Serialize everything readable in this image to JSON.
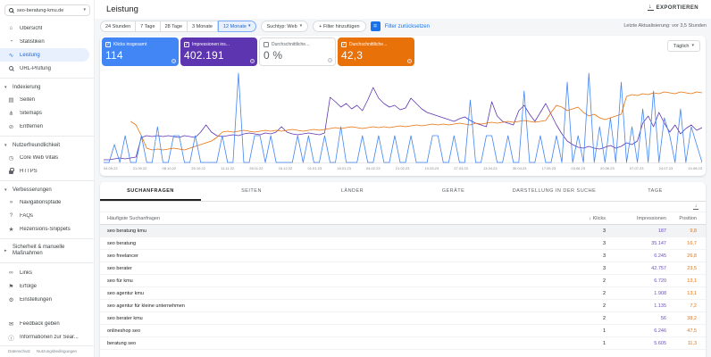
{
  "ui": {
    "caret": "▾",
    "download_glyph": "↓",
    "check_glyph": "✓",
    "help_glyph": "?",
    "badge_glyph": "="
  },
  "header": {
    "title": "Leistung",
    "export_label": "EXPORTIEREN",
    "last_update": "Letzte Aktualisierung: vor 3,5 Stunden"
  },
  "property": {
    "name": "seo-beratung-kmu.de"
  },
  "sidebar": {
    "items": [
      {
        "type": "item",
        "label": "Übersicht",
        "icon": "home-icon",
        "glyph": "⌂"
      },
      {
        "type": "item",
        "label": "Statistiken",
        "icon": "insights-icon",
        "glyph": "◔"
      },
      {
        "type": "item",
        "label": "Leistung",
        "icon": "performance-icon",
        "glyph": "∿",
        "selected": true
      },
      {
        "type": "item",
        "label": "URL-Prüfung",
        "icon": "url-inspect-icon",
        "glyph": "search"
      },
      {
        "type": "divider"
      },
      {
        "type": "section",
        "label": "Indexierung",
        "caret": "▾"
      },
      {
        "type": "item",
        "label": "Seiten",
        "icon": "pages-icon",
        "glyph": "▤"
      },
      {
        "type": "item",
        "label": "Sitemaps",
        "icon": "sitemaps-icon",
        "glyph": "⋔"
      },
      {
        "type": "item",
        "label": "Entfernen",
        "icon": "removals-icon",
        "glyph": "⊘"
      },
      {
        "type": "divider"
      },
      {
        "type": "section",
        "label": "Nutzerfreundlichkeit",
        "caret": "▾"
      },
      {
        "type": "item",
        "label": "Core Web Vitals",
        "icon": "core-web-vitals-icon",
        "glyph": "◷"
      },
      {
        "type": "item",
        "label": "HTTPS",
        "icon": "https-lock-icon",
        "glyph": "lock"
      },
      {
        "type": "divider"
      },
      {
        "type": "section",
        "label": "Verbesserungen",
        "caret": "▾"
      },
      {
        "type": "item",
        "label": "Navigationspfade",
        "icon": "breadcrumbs-icon",
        "glyph": "»"
      },
      {
        "type": "item",
        "label": "FAQs",
        "icon": "faq-icon",
        "glyph": "?"
      },
      {
        "type": "item",
        "label": "Rezensions-Snippets",
        "icon": "review-snippets-icon",
        "glyph": "★"
      },
      {
        "type": "divider"
      },
      {
        "type": "section",
        "label": "Sicherheit & manuelle Maßnahmen",
        "caret": "▸",
        "two_line": true
      },
      {
        "type": "divider"
      },
      {
        "type": "item",
        "label": "Links",
        "icon": "links-icon",
        "glyph": "∞"
      },
      {
        "type": "item",
        "label": "Erfolge",
        "icon": "achievements-icon",
        "glyph": "⚑"
      },
      {
        "type": "item",
        "label": "Einstellungen",
        "icon": "settings-gear-icon",
        "glyph": "⚙"
      }
    ],
    "footer_items": [
      {
        "label": "Feedback geben",
        "icon": "feedback-icon",
        "glyph": "✉"
      },
      {
        "label": "Informationen zur Sear...",
        "icon": "info-icon",
        "glyph": "ⓘ"
      }
    ],
    "legal": [
      "Datenschutz",
      "Nutzungsbedingungen"
    ]
  },
  "filters": {
    "date_ranges": [
      "24 Stunden",
      "7 Tage",
      "28 Tage",
      "3 Monate"
    ],
    "date_selected": "12 Monate",
    "search_type": "Suchtyp: Web",
    "add_filter": "+ Filter hinzufügen",
    "reset_filters": "Filter zurücksetzen"
  },
  "metrics": {
    "granularity": "Täglich",
    "cards": [
      {
        "name": "clicks",
        "label": "Klicks insgesamt",
        "value": "114",
        "checked": true,
        "color": "#4285f4"
      },
      {
        "name": "impressions",
        "label": "Impressionen ins...",
        "value": "402.191",
        "checked": true,
        "color": "#5e35b1"
      },
      {
        "name": "ctr",
        "label": "Durchschnittliche...",
        "value": "0 %",
        "checked": false,
        "color": "#ffffff"
      },
      {
        "name": "position",
        "label": "Durchschnittliche...",
        "value": "42,3",
        "checked": true,
        "color": "#e8710a"
      }
    ]
  },
  "chart_data": {
    "type": "line",
    "x_labels": [
      "04.09.22",
      "21.09.22",
      "08.10.22",
      "25.10.22",
      "11.11.22",
      "28.11.22",
      "15.12.22",
      "01.01.23",
      "18.01.23",
      "04.02.23",
      "21.02.23",
      "10.03.23",
      "27.03.23",
      "13.04.23",
      "30.04.23",
      "17.05.23",
      "03.06.23",
      "20.06.23",
      "07.07.23",
      "24.07.23",
      "10.08.23"
    ],
    "value_scale": [
      0,
      10
    ],
    "series": [
      {
        "name": "Impressionen",
        "color": "#5e35b1",
        "values": [
          0.3,
          0.3,
          0.4,
          0.5,
          0.4,
          0.5,
          0.6,
          2.8,
          3.0,
          2.9,
          3.0,
          2.9,
          3.0,
          2.9,
          2.8,
          3.0,
          2.9,
          2.8,
          3.4,
          4.2,
          3.4,
          3.0,
          2.9,
          3.0,
          3.1,
          3.0,
          3.2,
          3.3,
          3.2,
          3.1,
          3.3,
          3.2,
          3.4,
          4.0,
          3.4,
          3.2,
          3.1,
          3.2,
          3.3,
          3.2,
          3.1,
          3.3,
          7.3,
          6.8,
          6.2,
          6.6,
          6.0,
          6.4,
          5.8,
          7.0,
          8.4,
          7.2,
          6.6,
          6.2,
          6.4,
          5.9,
          6.1,
          7.2,
          6.6,
          6.0,
          5.6,
          5.4,
          5.2,
          5.0,
          4.8,
          4.6,
          4.9,
          5.1,
          4.7,
          4.4,
          4.2,
          4.0,
          6.8,
          5.2,
          4.6,
          4.4,
          4.2,
          5.8,
          6.4,
          5.4,
          4.6,
          5.6,
          6.6,
          5.4,
          4.2,
          3.2,
          2.4,
          2.0,
          1.7,
          1.6,
          1.8,
          1.6,
          1.5,
          1.7,
          1.9,
          1.6,
          1.8,
          2.2,
          2.0,
          2.4,
          4.4,
          5.2,
          4.0,
          5.6,
          4.4,
          3.4,
          4.2,
          3.2,
          3.8,
          4.2,
          3.6,
          3.9
        ]
      },
      {
        "name": "Position",
        "color": "#e8710a",
        "values": [
          null,
          null,
          null,
          null,
          null,
          4.6,
          4.2,
          3.0,
          1.6,
          1.4,
          1.5,
          1.4,
          1.5,
          1.6,
          1.5,
          1.4,
          1.6,
          1.8,
          2.0,
          2.2,
          2.4,
          2.8,
          3.4,
          3.5,
          3.4,
          3.5,
          3.6,
          3.5,
          3.4,
          3.5,
          3.6,
          3.5,
          3.6,
          3.5,
          3.6,
          3.7,
          3.6,
          3.5,
          3.6,
          3.7,
          3.6,
          3.7,
          3.8,
          3.9,
          3.8,
          3.9,
          4.0,
          3.9,
          3.8,
          3.9,
          4.0,
          3.9,
          4.0,
          3.9,
          4.0,
          4.1,
          4.0,
          4.1,
          4.2,
          4.1,
          4.2,
          4.3,
          4.2,
          4.3,
          4.2,
          4.3,
          4.4,
          4.3,
          4.2,
          4.4,
          4.3,
          4.4,
          4.5,
          4.4,
          4.5,
          4.6,
          4.5,
          4.6,
          4.7,
          4.6,
          4.5,
          4.6,
          4.7,
          5.6,
          6.4,
          6.2,
          5.8,
          6.0,
          6.2,
          5.6,
          5.2,
          5.4,
          5.0,
          4.8,
          5.0,
          5.2,
          5.4,
          7.4,
          7.6,
          7.5,
          7.7,
          7.6,
          7.8,
          7.7,
          7.9,
          7.8,
          7.7,
          7.9,
          7.8,
          7.7,
          7.9,
          7.8
        ]
      },
      {
        "name": "Klicks",
        "color": "#4285f4",
        "values": [
          0,
          0,
          2,
          0,
          3,
          0,
          0,
          3,
          0,
          0,
          4,
          0,
          0,
          3,
          3,
          0,
          0,
          3,
          0,
          0,
          0,
          0,
          3,
          0,
          0,
          10,
          0,
          0,
          3,
          3,
          0,
          3,
          0,
          0,
          0,
          0,
          3,
          0,
          3,
          0,
          0,
          3,
          0,
          0,
          4,
          0,
          0,
          0,
          3,
          0,
          0,
          3,
          0,
          0,
          3,
          0,
          0,
          3,
          0,
          0,
          0,
          3,
          3,
          0,
          0,
          3,
          0,
          0,
          7,
          0,
          0,
          3,
          3,
          0,
          0,
          3,
          0,
          0,
          8,
          0,
          0,
          3,
          0,
          0,
          3,
          0,
          9,
          0,
          3,
          0,
          10,
          0,
          4,
          0,
          5,
          0,
          9,
          0,
          4,
          0,
          6,
          0,
          8,
          0,
          5,
          3,
          0,
          6,
          0,
          4,
          2,
          0
        ]
      }
    ]
  },
  "tabs": {
    "items": [
      "SUCHANFRAGEN",
      "SEITEN",
      "LÄNDER",
      "GERÄTE",
      "DARSTELLUNG IN DER SUCHE",
      "TAGE"
    ],
    "active": 0
  },
  "table": {
    "headers": {
      "query": "Häufigste Suchanfragen",
      "clicks": "Klicks",
      "impressions": "Impressionen",
      "position": "Position"
    },
    "sort_icon": "↓",
    "rows": [
      {
        "query": "seo beratung kmu",
        "clicks": "3",
        "impressions": "187",
        "position": "9,8",
        "highlighted": true
      },
      {
        "query": "seo beratung",
        "clicks": "3",
        "impressions": "35.147",
        "position": "16,7"
      },
      {
        "query": "seo freelancer",
        "clicks": "3",
        "impressions": "6.245",
        "position": "26,8"
      },
      {
        "query": "seo berater",
        "clicks": "3",
        "impressions": "42.757",
        "position": "23,5"
      },
      {
        "query": "seo für kmu",
        "clicks": "2",
        "impressions": "6.720",
        "position": "13,1"
      },
      {
        "query": "seo agentur kmu",
        "clicks": "2",
        "impressions": "1.908",
        "position": "13,1"
      },
      {
        "query": "seo agentur für kleine unternehmen",
        "clicks": "2",
        "impressions": "1.135",
        "position": "7,2"
      },
      {
        "query": "seo berater kmu",
        "clicks": "2",
        "impressions": "56",
        "position": "38,2"
      },
      {
        "query": "onlineshop seo",
        "clicks": "1",
        "impressions": "6.246",
        "position": "47,5"
      },
      {
        "query": "beratung seo",
        "clicks": "1",
        "impressions": "5.605",
        "position": "11,3"
      }
    ]
  }
}
